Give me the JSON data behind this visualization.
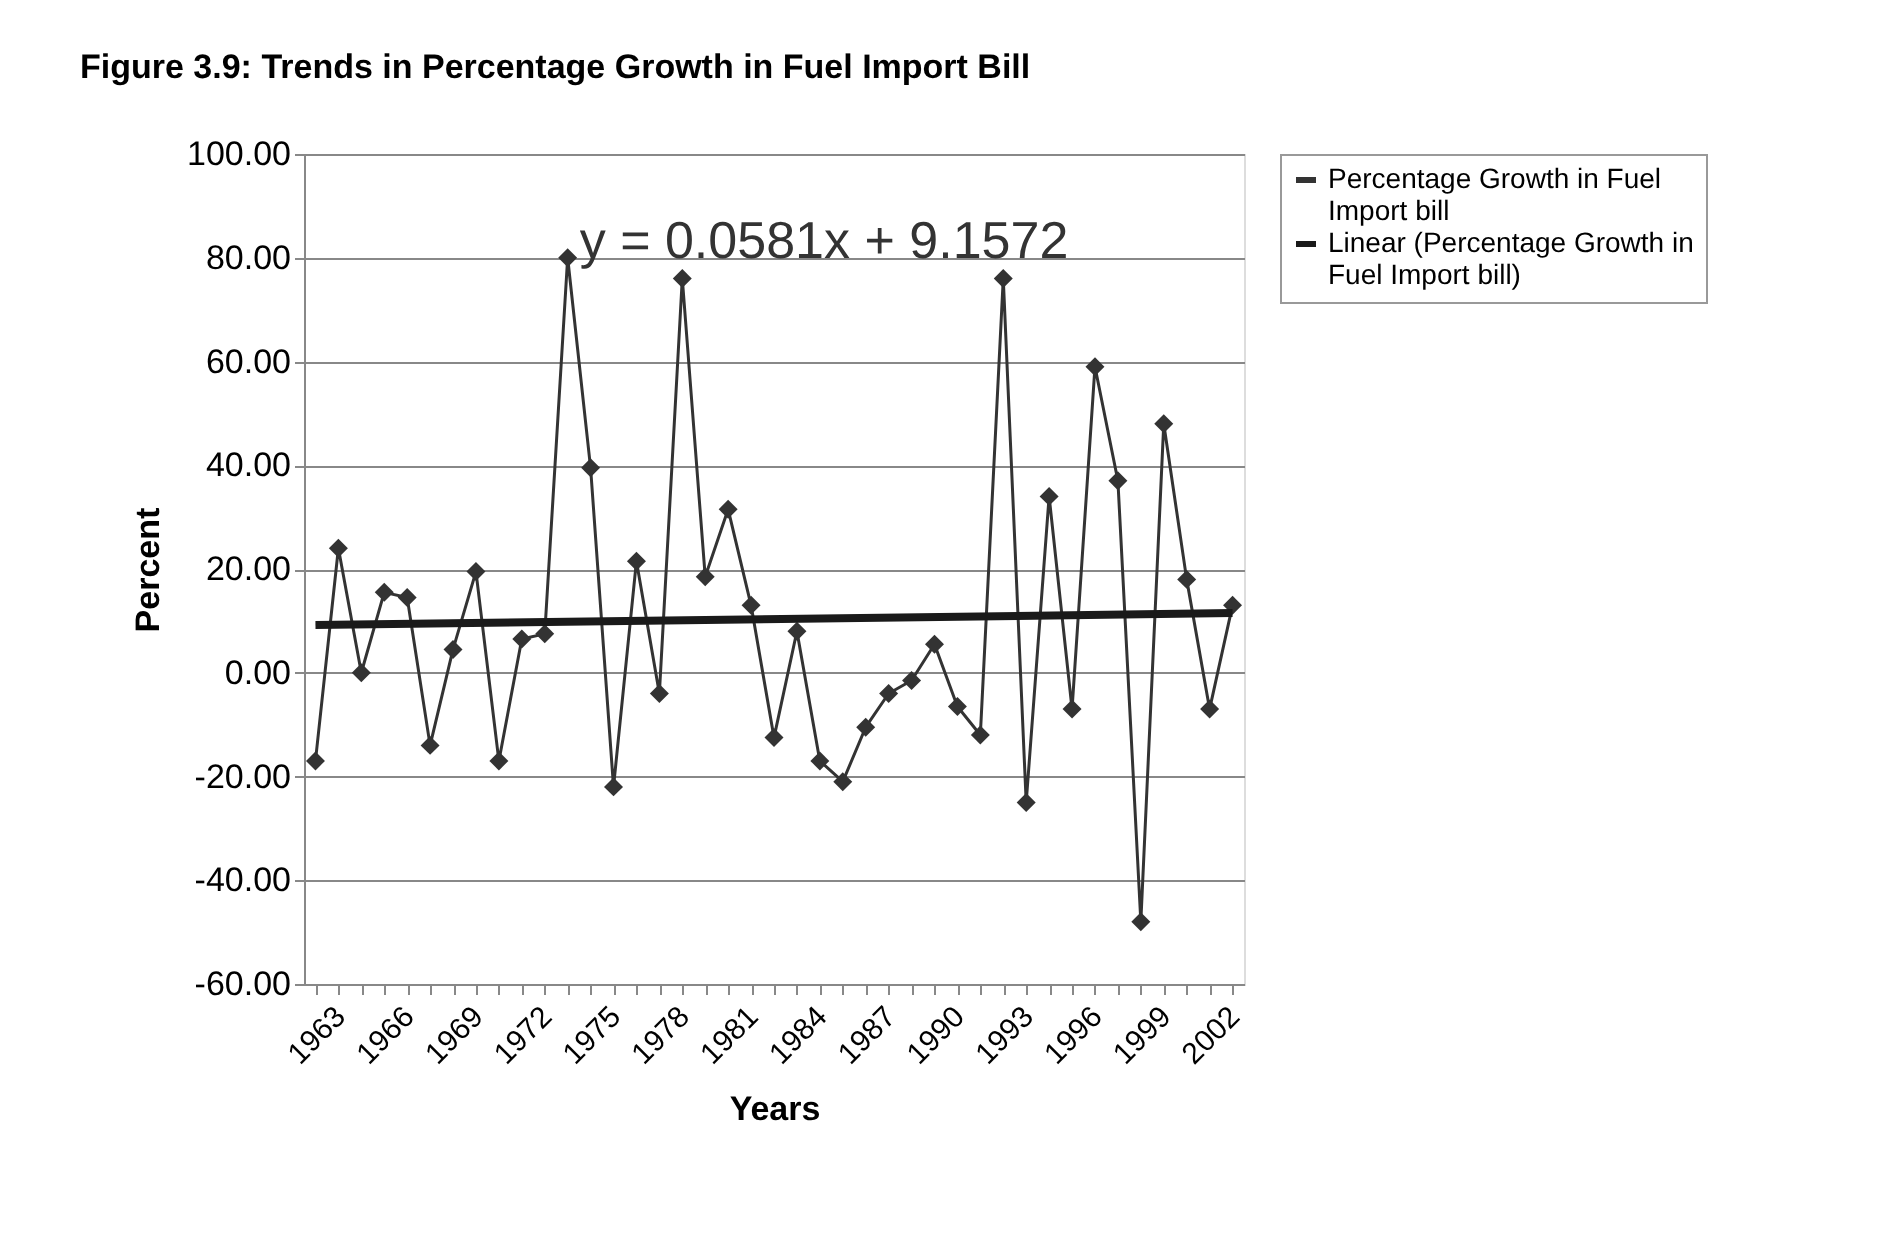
{
  "chart_data": {
    "type": "line",
    "title": "Figure 3.9: Trends in  Percentage Growth in Fuel Import Bill",
    "xlabel": "Years",
    "ylabel": "Percent",
    "categories": [
      "1963",
      null,
      null,
      "1966",
      null,
      null,
      "1969",
      null,
      null,
      "1972",
      null,
      null,
      "1975",
      null,
      null,
      "1978",
      null,
      null,
      "1981",
      null,
      null,
      "1984",
      null,
      null,
      "1987",
      null,
      null,
      "1990",
      null,
      null,
      "1993",
      null,
      null,
      "1996",
      null,
      null,
      "1999",
      null,
      null,
      "2002",
      null
    ],
    "series": [
      {
        "name": "Percentage Growth in Fuel Import bill",
        "color": "#333333",
        "marker": "diamond",
        "values": [
          -17,
          24,
          0,
          15.5,
          14.5,
          -14,
          4.5,
          19.5,
          -17,
          6.5,
          7.5,
          80,
          39.5,
          -22,
          21.5,
          -4,
          76,
          18.5,
          31.5,
          13,
          -12.5,
          8,
          -17,
          -21,
          -10.5,
          -4,
          -1.5,
          5.5,
          -6.5,
          -12,
          76,
          -25,
          34,
          -7,
          59,
          37,
          -48,
          48,
          18,
          -7,
          13
        ]
      },
      {
        "name": "Linear (Percentage Growth in Fuel Import bill)",
        "color": "#1a1a1a",
        "marker": "none",
        "values": [
          9.2,
          null,
          null,
          null,
          null,
          null,
          null,
          null,
          null,
          null,
          null,
          null,
          null,
          null,
          null,
          null,
          null,
          null,
          null,
          null,
          null,
          null,
          null,
          null,
          null,
          null,
          null,
          null,
          null,
          null,
          null,
          null,
          null,
          null,
          null,
          null,
          null,
          null,
          null,
          null,
          11.5
        ]
      }
    ],
    "annotations": [
      "y = 0.0581x + 9.1572"
    ],
    "ylim": [
      -60,
      100
    ],
    "yticks": [
      {
        "value": -60,
        "label": "-60.00"
      },
      {
        "value": -40,
        "label": "-40.00"
      },
      {
        "value": -20,
        "label": "-20.00"
      },
      {
        "value": 0,
        "label": "0.00"
      },
      {
        "value": 20,
        "label": "20.00"
      },
      {
        "value": 40,
        "label": "40.00"
      },
      {
        "value": 60,
        "label": "60.00"
      },
      {
        "value": 80,
        "label": "80.00"
      },
      {
        "value": 100,
        "label": "100.00"
      }
    ],
    "grid": "y",
    "legend": "right"
  }
}
